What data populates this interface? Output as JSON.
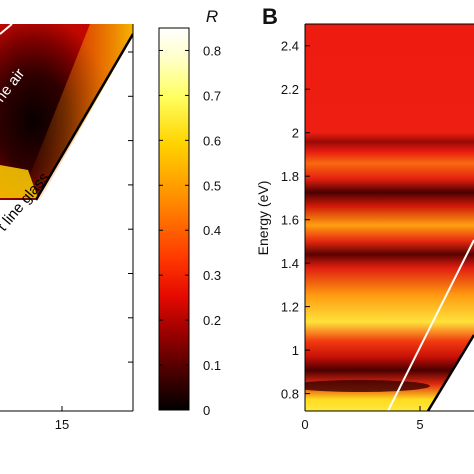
{
  "chart_data": [
    {
      "panel": "A",
      "type": "heatmap",
      "panel_label": "",
      "x_ticks": [
        "15"
      ],
      "annotations": [
        "ne air",
        "t line glass"
      ],
      "colorscale": [
        "#000000",
        "#5a0000",
        "#c80000",
        "#ff2000",
        "#ff8a00",
        "#ffe600",
        "#ffff9a",
        "#ffffff"
      ]
    },
    {
      "panel": "colorbar",
      "type": "heatmap",
      "title": "R",
      "range": [
        0,
        0.85
      ],
      "ticks": [
        0,
        0.1,
        0.2,
        0.3,
        0.4,
        0.5,
        0.6,
        0.7,
        0.8
      ],
      "tick_labels": [
        "0",
        "0.1",
        "0.2",
        "0.3",
        "0.4",
        "0.5",
        "0.6",
        "0.7",
        "0.8"
      ]
    },
    {
      "panel": "B",
      "type": "heatmap",
      "panel_label": "B",
      "ylabel": "Energy (eV)",
      "ylim": [
        0.72,
        2.5
      ],
      "y_ticks": [
        0.8,
        1,
        1.2,
        1.4,
        1.6,
        1.8,
        2,
        2.2,
        2.4
      ],
      "y_tick_labels": [
        "0.8",
        "1",
        "1.2",
        "1.4",
        "1.6",
        "1.8",
        "2",
        "2.2",
        "2.4"
      ],
      "x_ticks": [
        0,
        5
      ],
      "x_tick_labels": [
        "0",
        "5"
      ],
      "bands": [
        {
          "energy": 1.88,
          "R": 0.05
        },
        {
          "energy": 1.62,
          "R": 0.12
        },
        {
          "energy": 1.31,
          "R": 0.12
        },
        {
          "energy": 0.84,
          "R": 0.06
        }
      ],
      "light_lines": [
        "air (white)",
        "glass (black)"
      ]
    }
  ]
}
